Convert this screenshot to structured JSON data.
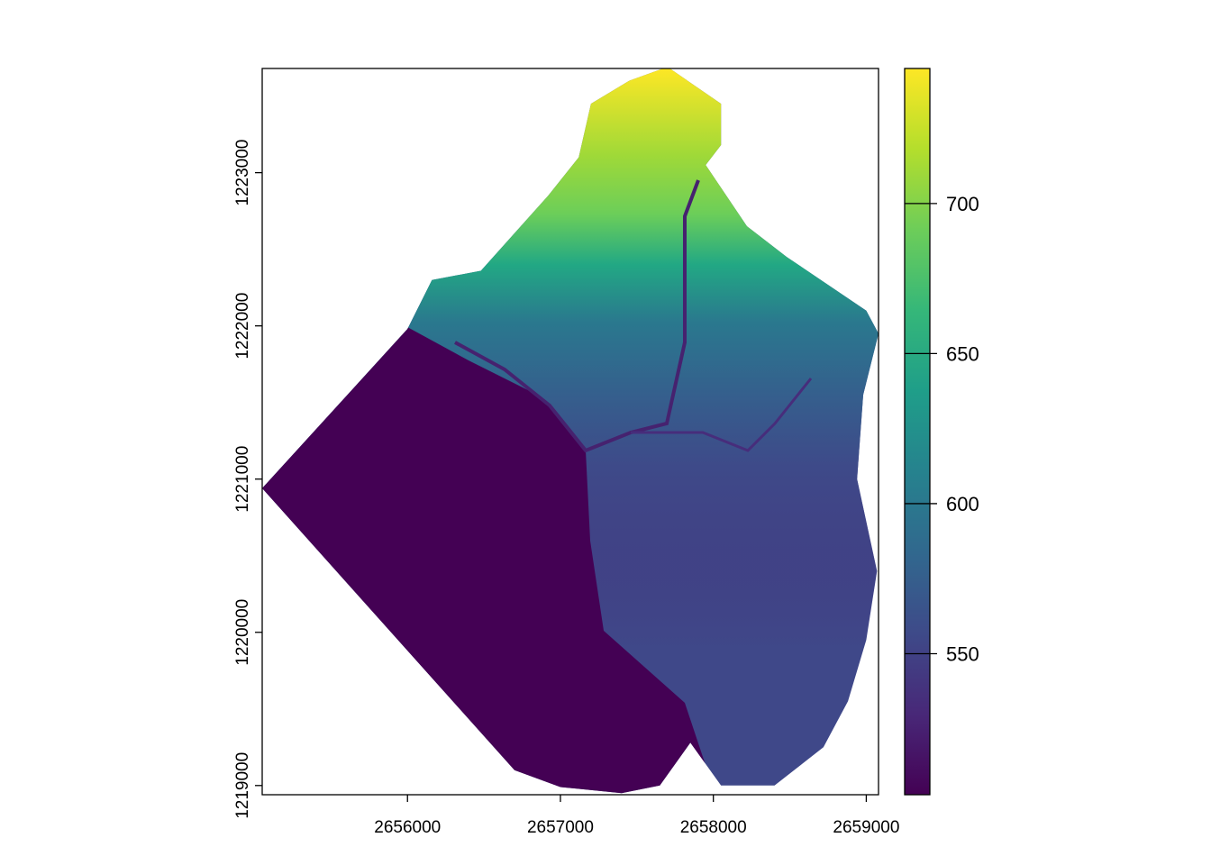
{
  "chart_data": {
    "type": "heatmap",
    "title": "",
    "xlabel": "",
    "ylabel": "",
    "xlim": [
      2655050,
      2659080
    ],
    "ylim": [
      1218940,
      1223680
    ],
    "x_ticks": [
      "2656000",
      "2657000",
      "2658000",
      "2659000"
    ],
    "y_ticks": [
      "1219000",
      "1220000",
      "1221000",
      "1222000",
      "1223000"
    ],
    "legend": {
      "placement": "right",
      "colormap": "viridis",
      "range": [
        503,
        745
      ],
      "ticks": [
        "550",
        "600",
        "650",
        "700"
      ],
      "colors": [
        "#440154",
        "#482878",
        "#3E4A89",
        "#31688E",
        "#26828E",
        "#1F9E89",
        "#35B779",
        "#6DCD59",
        "#B4DE2C",
        "#FDE725"
      ]
    },
    "extent_outline": [
      [
        2655050,
        1220940
      ],
      [
        2656000,
        1221980
      ],
      [
        2656160,
        1222300
      ],
      [
        2656480,
        1222360
      ],
      [
        2656920,
        1222850
      ],
      [
        2657120,
        1223100
      ],
      [
        2657200,
        1223450
      ],
      [
        2657450,
        1223600
      ],
      [
        2657700,
        1223690
      ],
      [
        2658050,
        1223450
      ],
      [
        2658050,
        1223180
      ],
      [
        2657950,
        1223050
      ],
      [
        2658220,
        1222650
      ],
      [
        2658480,
        1222450
      ],
      [
        2659000,
        1222100
      ],
      [
        2659080,
        1221950
      ],
      [
        2658980,
        1221550
      ],
      [
        2658940,
        1221000
      ],
      [
        2659070,
        1220400
      ],
      [
        2659000,
        1219950
      ],
      [
        2658880,
        1219550
      ],
      [
        2658720,
        1219250
      ],
      [
        2658400,
        1219000
      ],
      [
        2658050,
        1219000
      ],
      [
        2657850,
        1219280
      ],
      [
        2657650,
        1219000
      ],
      [
        2657400,
        1218950
      ],
      [
        2657000,
        1218990
      ],
      [
        2656700,
        1219100
      ],
      [
        2655050,
        1220940
      ]
    ]
  }
}
